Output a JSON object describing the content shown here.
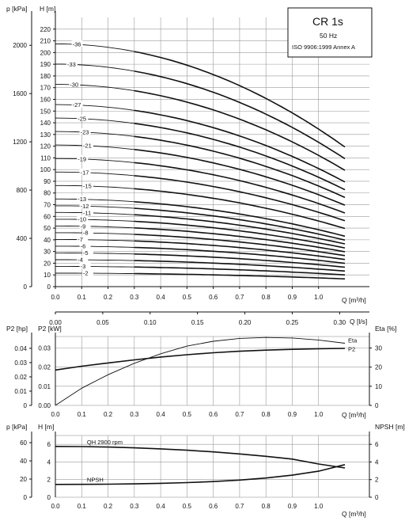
{
  "chart_data": [
    {
      "type": "line",
      "title": "CR 1s",
      "subtitle": "50 Hz",
      "standard": "ISO 9906:1999 Annex A",
      "xlabel": "Q [m³/h]",
      "ylabel": "H [m]",
      "ylabel2": "p [kPa]",
      "xlabel_top_units": "Q [l/s]",
      "x_ticks": [
        "0.0",
        "0.1",
        "0.2",
        "0.3",
        "0.4",
        "0.5",
        "0.6",
        "0.7",
        "0.8",
        "0.9",
        "1.0"
      ],
      "xlim": [
        0,
        1.1
      ],
      "ylim": [
        0,
        230
      ],
      "y_ticks": [
        "0",
        "10",
        "20",
        "30",
        "40",
        "50",
        "60",
        "70",
        "80",
        "90",
        "100",
        "110",
        "120",
        "130",
        "140",
        "150",
        "160",
        "170",
        "180",
        "190",
        "200",
        "210",
        "220"
      ],
      "p_ticks": [
        "0",
        "400",
        "800",
        "1200",
        "1600",
        "2000"
      ],
      "ls_ticks": [
        "0.00",
        "0.05",
        "0.10",
        "0.15",
        "0.20",
        "0.25",
        "0.30"
      ],
      "stages": [
        {
          "name": "2",
          "h0": 11.5,
          "h_end": 6.6
        },
        {
          "name": "3",
          "h0": 17.3,
          "h_end": 10.0
        },
        {
          "name": "4",
          "h0": 23.0,
          "h_end": 13.3
        },
        {
          "name": "5",
          "h0": 28.8,
          "h_end": 16.6
        },
        {
          "name": "6",
          "h0": 34.6,
          "h_end": 19.9
        },
        {
          "name": "7",
          "h0": 40.3,
          "h_end": 23.2
        },
        {
          "name": "8",
          "h0": 46.1,
          "h_end": 26.5
        },
        {
          "name": "9",
          "h0": 51.8,
          "h_end": 29.8
        },
        {
          "name": "10",
          "h0": 57.6,
          "h_end": 33.1
        },
        {
          "name": "11",
          "h0": 63.4,
          "h_end": 36.5
        },
        {
          "name": "12",
          "h0": 69.1,
          "h_end": 39.8
        },
        {
          "name": "13",
          "h0": 74.9,
          "h_end": 43.1
        },
        {
          "name": "15",
          "h0": 86.4,
          "h_end": 49.7
        },
        {
          "name": "17",
          "h0": 97.9,
          "h_end": 56.3
        },
        {
          "name": "19",
          "h0": 109.4,
          "h_end": 62.9
        },
        {
          "name": "21",
          "h0": 121.0,
          "h_end": 69.6
        },
        {
          "name": "23",
          "h0": 132.5,
          "h_end": 76.2
        },
        {
          "name": "25",
          "h0": 144.0,
          "h_end": 82.8
        },
        {
          "name": "27",
          "h0": 155.5,
          "h_end": 89.4
        },
        {
          "name": "30",
          "h0": 172.8,
          "h_end": 99.4
        },
        {
          "name": "33",
          "h0": 190.1,
          "h_end": 109.3
        },
        {
          "name": "36",
          "h0": 207.4,
          "h_end": 119.3
        }
      ]
    },
    {
      "type": "line",
      "ylabel_left": "P2 [hp]",
      "ylabel_left2": "P2 [kW]",
      "ylabel_right": "Eta [%]",
      "xlabel": "Q [m³/h]",
      "xlim": [
        0,
        1.1
      ],
      "hp_ticks": [
        "0",
        "0.01",
        "0.02",
        "0.03",
        "0.04"
      ],
      "kw_ticks": [
        "0.00",
        "0.01",
        "0.02",
        "0.03"
      ],
      "eta_ticks": [
        "0",
        "10",
        "20",
        "30"
      ],
      "series": [
        {
          "name": "P2",
          "unit": "kW",
          "x": [
            0,
            0.1,
            0.2,
            0.3,
            0.4,
            0.5,
            0.6,
            0.7,
            0.8,
            0.9,
            1.0,
            1.1
          ],
          "y": [
            0.0185,
            0.0205,
            0.0222,
            0.0238,
            0.0253,
            0.0265,
            0.0275,
            0.0283,
            0.0289,
            0.0293,
            0.0296,
            0.0298
          ]
        },
        {
          "name": "Eta",
          "unit": "%",
          "x": [
            0,
            0.1,
            0.2,
            0.3,
            0.4,
            0.5,
            0.6,
            0.7,
            0.8,
            0.9,
            1.0,
            1.1
          ],
          "y": [
            0,
            9,
            16,
            22,
            27,
            31,
            33.5,
            35,
            35.5,
            35.2,
            34.2,
            32.5
          ]
        }
      ]
    },
    {
      "type": "line",
      "ylabel_left": "p [kPa]",
      "ylabel_left2": "H [m]",
      "ylabel_right": "NPSH [m]",
      "xlabel": "Q [m³/h]",
      "xlim": [
        0,
        1.1
      ],
      "kpa_ticks": [
        "0",
        "20",
        "40",
        "60"
      ],
      "h_ticks": [
        "0",
        "2",
        "4",
        "6"
      ],
      "npsh_ticks": [
        "0",
        "2",
        "4",
        "6"
      ],
      "series": [
        {
          "name": "QH 2900 rpm",
          "x": [
            0,
            0.1,
            0.2,
            0.3,
            0.4,
            0.5,
            0.6,
            0.7,
            0.8,
            0.9,
            1.0,
            1.1
          ],
          "y": [
            5.76,
            5.74,
            5.69,
            5.6,
            5.48,
            5.33,
            5.14,
            4.91,
            4.64,
            4.33,
            3.77,
            3.32
          ]
        },
        {
          "name": "NPSH",
          "x": [
            0,
            0.1,
            0.2,
            0.3,
            0.4,
            0.5,
            0.6,
            0.7,
            0.8,
            0.9,
            1.0,
            1.1
          ],
          "y": [
            1.45,
            1.46,
            1.48,
            1.52,
            1.58,
            1.66,
            1.78,
            1.95,
            2.18,
            2.5,
            2.95,
            3.7
          ]
        }
      ]
    }
  ]
}
